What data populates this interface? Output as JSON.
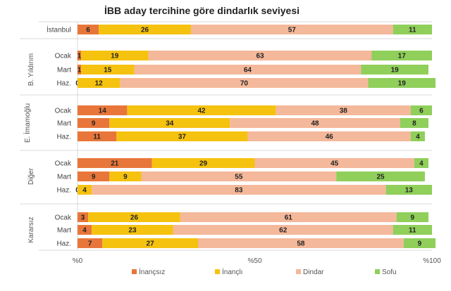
{
  "chart_data": {
    "type": "bar",
    "orientation": "horizontal",
    "stacked": true,
    "title": "İBB aday tercihine göre dindarlık seviyesi",
    "series": [
      {
        "name": "İnançsız",
        "color": "#e8763a"
      },
      {
        "name": "İnançlı",
        "color": "#f5c20f"
      },
      {
        "name": "Dindar",
        "color": "#f4b89a"
      },
      {
        "name": "Sofu",
        "color": "#8fcf5a"
      }
    ],
    "groups": [
      {
        "name": "",
        "rows": [
          {
            "label": "İstanbul",
            "values": [
              6,
              26,
              57,
              11
            ]
          }
        ]
      },
      {
        "name": "B. Yıldırım",
        "rows": [
          {
            "label": "Ocak",
            "values": [
              1,
              19,
              63,
              17
            ]
          },
          {
            "label": "Mart",
            "values": [
              1,
              15,
              64,
              19
            ]
          },
          {
            "label": "Haz.",
            "values": [
              0,
              12,
              70,
              19
            ]
          }
        ]
      },
      {
        "name": "E. İmamoğlu",
        "rows": [
          {
            "label": "Ocak",
            "values": [
              14,
              42,
              38,
              6
            ]
          },
          {
            "label": "Mart",
            "values": [
              9,
              34,
              48,
              8
            ]
          },
          {
            "label": "Haz.",
            "values": [
              11,
              37,
              46,
              4
            ]
          }
        ]
      },
      {
        "name": "Diğer",
        "rows": [
          {
            "label": "Ocak",
            "values": [
              21,
              29,
              45,
              4
            ]
          },
          {
            "label": "Mart",
            "values": [
              9,
              9,
              55,
              25
            ]
          },
          {
            "label": "Haz.",
            "values": [
              0,
              4,
              83,
              13
            ]
          }
        ]
      },
      {
        "name": "Kararsız",
        "rows": [
          {
            "label": "Ocak",
            "values": [
              3,
              26,
              61,
              9
            ]
          },
          {
            "label": "Mart",
            "values": [
              4,
              23,
              62,
              11
            ]
          },
          {
            "label": "Haz.",
            "values": [
              7,
              27,
              58,
              9
            ]
          }
        ]
      }
    ],
    "xlim": [
      0,
      100
    ],
    "xticks": [
      "%0",
      "%50",
      "%100"
    ],
    "legend_position": "bottom",
    "grid": false
  }
}
